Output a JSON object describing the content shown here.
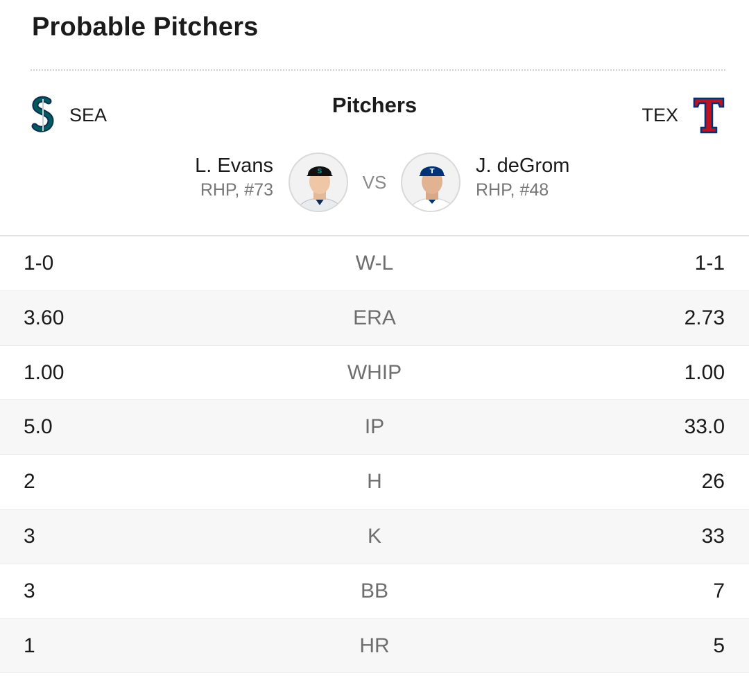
{
  "section_title": "Probable Pitchers",
  "header": {
    "label": "Pitchers",
    "away_team": {
      "abbr": "SEA",
      "logo_icon": "mariners-logo-icon",
      "color": "#005C5C"
    },
    "home_team": {
      "abbr": "TEX",
      "logo_icon": "rangers-logo-icon",
      "color": "#C0111F"
    }
  },
  "matchup": {
    "vs_label": "VS",
    "away_pitcher": {
      "name": "L. Evans",
      "meta": "RHP, #73"
    },
    "home_pitcher": {
      "name": "J. deGrom",
      "meta": "RHP, #48"
    }
  },
  "stats": [
    {
      "label": "W-L",
      "away": "1-0",
      "home": "1-1"
    },
    {
      "label": "ERA",
      "away": "3.60",
      "home": "2.73"
    },
    {
      "label": "WHIP",
      "away": "1.00",
      "home": "1.00"
    },
    {
      "label": "IP",
      "away": "5.0",
      "home": "33.0"
    },
    {
      "label": "H",
      "away": "2",
      "home": "26"
    },
    {
      "label": "K",
      "away": "3",
      "home": "33"
    },
    {
      "label": "BB",
      "away": "3",
      "home": "7"
    },
    {
      "label": "HR",
      "away": "1",
      "home": "5"
    }
  ]
}
